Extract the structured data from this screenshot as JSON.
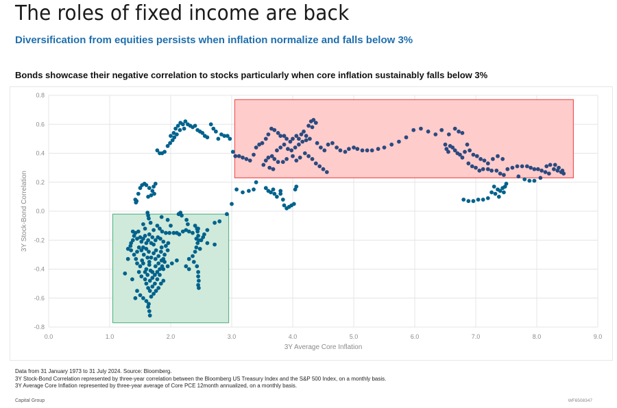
{
  "header": {
    "title": "The roles of fixed income are back",
    "subtitle": "Diversification from equities persists when inflation normalize and falls below 3%",
    "chart_heading": "Bonds showcase their negative correlation to stocks particularly when core inflation sustainably falls below 3%"
  },
  "footer": {
    "notes": [
      "Data from 31 January 1973 to 31 July 2024. Source: Bloomberg.",
      "3Y Stock-Bond Correlation represented by three-year correlation between the Bloomberg US Treasury Index and the S&P 500 Index, on a monthly basis.",
      "3Y Average Core Inflation represented by three-year average of Core PCE 12month annualized, on a monthly basis."
    ],
    "brand": "Capital Group",
    "code": "WF6508347"
  },
  "colors": {
    "subtitle": "#1f6fad",
    "point_low": "#00628c",
    "point_high": "#2b4a7e",
    "green_fill": "#cfeadb",
    "green_border": "#5db68a",
    "red_fill": "#ffcccc",
    "red_border": "#ef5555",
    "grid": "#e4e4e4"
  },
  "chart_data": {
    "type": "scatter",
    "title": "Bonds showcase their negative correlation to stocks particularly when core inflation sustainably falls below 3%",
    "xlabel": "3Y Average Core Inflation",
    "ylabel": "3Y Stock-Bond Correlation",
    "xlim": [
      0,
      9
    ],
    "ylim": [
      -0.8,
      0.8
    ],
    "xticks": [
      "0.0",
      "1.0",
      "2.0",
      "3.0",
      "4.0",
      "5.0",
      "6.0",
      "7.0",
      "8.0",
      "9.0"
    ],
    "yticks": [
      "0.8",
      "0.6",
      "0.4",
      "0.2",
      "0.0",
      "-0.2",
      "-0.4",
      "-0.6",
      "-0.8"
    ],
    "grid": true,
    "legend": "none",
    "highlight_regions": [
      {
        "name": "low-inflation-negative-correlation",
        "x": [
          1.05,
          2.95
        ],
        "y": [
          -0.77,
          -0.02
        ],
        "color": "green"
      },
      {
        "name": "high-inflation-positive-correlation",
        "x": [
          3.05,
          8.6
        ],
        "y": [
          0.23,
          0.77
        ],
        "color": "red"
      }
    ],
    "points": [
      [
        1.62,
        -0.01
      ],
      [
        1.63,
        -0.03
      ],
      [
        1.64,
        -0.05
      ],
      [
        1.85,
        -0.04
      ],
      [
        2.13,
        -0.02
      ],
      [
        2.16,
        -0.01
      ],
      [
        2.18,
        -0.03
      ],
      [
        2.26,
        -0.06
      ],
      [
        2.28,
        -0.09
      ],
      [
        2.92,
        -0.02
      ],
      [
        2.8,
        -0.07
      ],
      [
        2.72,
        -0.08
      ],
      [
        2.6,
        -0.13
      ],
      [
        1.58,
        -0.17
      ],
      [
        1.65,
        -0.16
      ],
      [
        1.72,
        -0.13
      ],
      [
        1.78,
        -0.1
      ],
      [
        1.82,
        -0.12
      ],
      [
        1.86,
        -0.14
      ],
      [
        1.92,
        -0.15
      ],
      [
        1.98,
        -0.15
      ],
      [
        2.05,
        -0.15
      ],
      [
        2.1,
        -0.15
      ],
      [
        2.14,
        -0.16
      ],
      [
        2.2,
        -0.14
      ],
      [
        2.25,
        -0.13
      ],
      [
        2.3,
        -0.14
      ],
      [
        2.36,
        -0.15
      ],
      [
        2.42,
        -0.19
      ],
      [
        2.46,
        -0.2
      ],
      [
        2.5,
        -0.2
      ],
      [
        2.53,
        -0.18
      ],
      [
        2.55,
        -0.16
      ],
      [
        2.45,
        -0.12
      ],
      [
        2.4,
        -0.1
      ],
      [
        1.4,
        -0.17
      ],
      [
        1.38,
        -0.2
      ],
      [
        1.35,
        -0.22
      ],
      [
        1.42,
        -0.15
      ],
      [
        1.47,
        -0.14
      ],
      [
        1.5,
        -0.18
      ],
      [
        1.52,
        -0.21
      ],
      [
        1.55,
        -0.19
      ],
      [
        1.6,
        -0.22
      ],
      [
        1.63,
        -0.2
      ],
      [
        1.68,
        -0.22
      ],
      [
        1.7,
        -0.18
      ],
      [
        1.75,
        -0.2
      ],
      [
        1.79,
        -0.18
      ],
      [
        1.83,
        -0.19
      ],
      [
        1.88,
        -0.21
      ],
      [
        1.92,
        -0.24
      ],
      [
        1.96,
        -0.22
      ],
      [
        1.35,
        -0.27
      ],
      [
        1.4,
        -0.3
      ],
      [
        1.43,
        -0.33
      ],
      [
        1.45,
        -0.28
      ],
      [
        1.48,
        -0.25
      ],
      [
        1.52,
        -0.27
      ],
      [
        1.56,
        -0.3
      ],
      [
        1.6,
        -0.26
      ],
      [
        1.64,
        -0.28
      ],
      [
        1.68,
        -0.32
      ],
      [
        1.72,
        -0.29
      ],
      [
        1.76,
        -0.27
      ],
      [
        1.8,
        -0.31
      ],
      [
        1.84,
        -0.28
      ],
      [
        1.88,
        -0.33
      ],
      [
        1.3,
        -0.33
      ],
      [
        1.45,
        -0.36
      ],
      [
        1.5,
        -0.38
      ],
      [
        1.55,
        -0.36
      ],
      [
        1.6,
        -0.4
      ],
      [
        1.65,
        -0.37
      ],
      [
        1.7,
        -0.42
      ],
      [
        1.75,
        -0.38
      ],
      [
        1.8,
        -0.36
      ],
      [
        1.85,
        -0.34
      ],
      [
        1.9,
        -0.3
      ],
      [
        1.95,
        -0.27
      ],
      [
        1.48,
        -0.42
      ],
      [
        1.52,
        -0.45
      ],
      [
        1.58,
        -0.47
      ],
      [
        1.62,
        -0.44
      ],
      [
        1.66,
        -0.48
      ],
      [
        1.7,
        -0.46
      ],
      [
        1.74,
        -0.44
      ],
      [
        1.78,
        -0.42
      ],
      [
        1.82,
        -0.4
      ],
      [
        1.86,
        -0.38
      ],
      [
        1.9,
        -0.35
      ],
      [
        1.25,
        -0.43
      ],
      [
        1.37,
        -0.47
      ],
      [
        1.6,
        -0.5
      ],
      [
        1.63,
        -0.53
      ],
      [
        1.66,
        -0.55
      ],
      [
        1.7,
        -0.52
      ],
      [
        1.74,
        -0.5
      ],
      [
        1.78,
        -0.47
      ],
      [
        1.82,
        -0.44
      ],
      [
        1.88,
        -0.4
      ],
      [
        1.95,
        -0.38
      ],
      [
        2.02,
        -0.36
      ],
      [
        2.1,
        -0.34
      ],
      [
        2.3,
        -0.33
      ],
      [
        2.36,
        -0.31
      ],
      [
        2.4,
        -0.28
      ],
      [
        2.42,
        -0.25
      ],
      [
        2.44,
        -0.22
      ],
      [
        2.48,
        -0.26
      ],
      [
        2.38,
        -0.35
      ],
      [
        2.43,
        -0.38
      ],
      [
        2.45,
        -0.42
      ],
      [
        2.45,
        -0.45
      ],
      [
        2.46,
        -0.48
      ],
      [
        2.45,
        -0.51
      ],
      [
        2.46,
        -0.53
      ],
      [
        2.3,
        -0.4
      ],
      [
        2.25,
        -0.38
      ],
      [
        2.6,
        -0.22
      ],
      [
        2.72,
        -0.23
      ],
      [
        2.45,
        -0.17
      ],
      [
        2.44,
        -0.14
      ],
      [
        2.43,
        -0.12
      ],
      [
        1.5,
        -0.58
      ],
      [
        1.55,
        -0.6
      ],
      [
        1.6,
        -0.62
      ],
      [
        1.64,
        -0.64
      ],
      [
        1.45,
        -0.55
      ],
      [
        1.42,
        -0.6
      ],
      [
        1.63,
        -0.66
      ],
      [
        1.65,
        -0.69
      ],
      [
        1.66,
        -0.72
      ],
      [
        1.68,
        -0.59
      ],
      [
        1.72,
        -0.57
      ],
      [
        1.76,
        -0.55
      ],
      [
        1.8,
        -0.53
      ],
      [
        1.84,
        -0.5
      ],
      [
        1.88,
        -0.48
      ],
      [
        1.3,
        -0.26
      ],
      [
        1.34,
        -0.24
      ],
      [
        1.38,
        -0.14
      ],
      [
        1.55,
        -0.09
      ],
      [
        1.58,
        -0.12
      ],
      [
        1.67,
        -0.08
      ],
      [
        1.95,
        -0.06
      ],
      [
        2.0,
        -0.1
      ],
      [
        1.45,
        -0.19
      ],
      [
        1.55,
        -0.25
      ],
      [
        1.65,
        -0.35
      ],
      [
        1.75,
        -0.33
      ],
      [
        1.85,
        -0.25
      ],
      [
        1.72,
        -0.23
      ],
      [
        1.62,
        -0.32
      ],
      [
        1.53,
        -0.34
      ],
      [
        1.58,
        -0.42
      ],
      [
        1.67,
        -0.41
      ],
      [
        1.42,
        0.08
      ],
      [
        1.43,
        0.06
      ],
      [
        1.44,
        0.07
      ],
      [
        1.47,
        0.12
      ],
      [
        1.5,
        0.16
      ],
      [
        1.53,
        0.18
      ],
      [
        1.57,
        0.19
      ],
      [
        1.6,
        0.18
      ],
      [
        1.65,
        0.16
      ],
      [
        1.7,
        0.14
      ],
      [
        1.73,
        0.12
      ],
      [
        1.68,
        0.11
      ],
      [
        1.63,
        0.1
      ],
      [
        1.72,
        0.17
      ],
      [
        1.75,
        0.19
      ],
      [
        1.78,
        0.42
      ],
      [
        1.82,
        0.4
      ],
      [
        1.86,
        0.4
      ],
      [
        1.9,
        0.41
      ],
      [
        1.95,
        0.45
      ],
      [
        1.99,
        0.47
      ],
      [
        2.03,
        0.49
      ],
      [
        2.06,
        0.51
      ],
      [
        2.05,
        0.54
      ],
      [
        2.08,
        0.57
      ],
      [
        2.12,
        0.59
      ],
      [
        2.16,
        0.61
      ],
      [
        2.2,
        0.6
      ],
      [
        2.24,
        0.62
      ],
      [
        2.28,
        0.6
      ],
      [
        2.32,
        0.59
      ],
      [
        2.36,
        0.58
      ],
      [
        2.4,
        0.59
      ],
      [
        2.44,
        0.56
      ],
      [
        2.48,
        0.55
      ],
      [
        2.52,
        0.54
      ],
      [
        2.56,
        0.52
      ],
      [
        2.6,
        0.51
      ],
      [
        2.66,
        0.6
      ],
      [
        2.7,
        0.57
      ],
      [
        2.74,
        0.55
      ],
      [
        2.78,
        0.5
      ],
      [
        2.83,
        0.53
      ],
      [
        2.88,
        0.52
      ],
      [
        2.93,
        0.52
      ],
      [
        2.97,
        0.5
      ],
      [
        2.15,
        0.56
      ],
      [
        2.22,
        0.57
      ],
      [
        2.1,
        0.53
      ],
      [
        2.0,
        0.52
      ],
      [
        3.02,
        0.41
      ],
      [
        3.06,
        0.38
      ],
      [
        3.12,
        0.38
      ],
      [
        3.18,
        0.37
      ],
      [
        3.24,
        0.36
      ],
      [
        3.3,
        0.35
      ],
      [
        3.36,
        0.39
      ],
      [
        3.4,
        0.44
      ],
      [
        3.45,
        0.46
      ],
      [
        3.5,
        0.47
      ],
      [
        3.56,
        0.5
      ],
      [
        3.6,
        0.53
      ],
      [
        3.65,
        0.57
      ],
      [
        3.7,
        0.56
      ],
      [
        3.76,
        0.54
      ],
      [
        3.8,
        0.52
      ],
      [
        3.86,
        0.52
      ],
      [
        3.9,
        0.5
      ],
      [
        3.96,
        0.48
      ],
      [
        4.0,
        0.5
      ],
      [
        4.06,
        0.52
      ],
      [
        4.1,
        0.5
      ],
      [
        4.14,
        0.53
      ],
      [
        4.18,
        0.55
      ],
      [
        4.22,
        0.52
      ],
      [
        4.26,
        0.59
      ],
      [
        4.3,
        0.62
      ],
      [
        4.34,
        0.63
      ],
      [
        4.38,
        0.61
      ],
      [
        4.32,
        0.58
      ],
      [
        3.74,
        0.42
      ],
      [
        3.8,
        0.44
      ],
      [
        3.86,
        0.46
      ],
      [
        3.92,
        0.43
      ],
      [
        3.98,
        0.42
      ],
      [
        4.04,
        0.44
      ],
      [
        4.1,
        0.46
      ],
      [
        4.16,
        0.48
      ],
      [
        4.22,
        0.49
      ],
      [
        4.28,
        0.5
      ],
      [
        3.52,
        0.32
      ],
      [
        3.56,
        0.35
      ],
      [
        3.6,
        0.37
      ],
      [
        3.66,
        0.38
      ],
      [
        3.7,
        0.36
      ],
      [
        3.76,
        0.34
      ],
      [
        3.62,
        0.3
      ],
      [
        3.68,
        0.29
      ],
      [
        3.84,
        0.34
      ],
      [
        3.9,
        0.36
      ],
      [
        4.0,
        0.38
      ],
      [
        4.06,
        0.35
      ],
      [
        4.12,
        0.37
      ],
      [
        4.2,
        0.4
      ],
      [
        4.26,
        0.38
      ],
      [
        4.32,
        0.36
      ],
      [
        4.38,
        0.33
      ],
      [
        4.44,
        0.31
      ],
      [
        4.5,
        0.29
      ],
      [
        4.56,
        0.27
      ],
      [
        4.4,
        0.47
      ],
      [
        4.46,
        0.44
      ],
      [
        4.52,
        0.42
      ],
      [
        4.58,
        0.46
      ],
      [
        4.65,
        0.47
      ],
      [
        4.72,
        0.44
      ],
      [
        4.78,
        0.42
      ],
      [
        4.86,
        0.41
      ],
      [
        4.92,
        0.43
      ],
      [
        5.0,
        0.44
      ],
      [
        5.06,
        0.43
      ],
      [
        5.14,
        0.42
      ],
      [
        5.22,
        0.42
      ],
      [
        5.3,
        0.42
      ],
      [
        5.4,
        0.43
      ],
      [
        5.5,
        0.44
      ],
      [
        5.62,
        0.46
      ],
      [
        5.74,
        0.48
      ],
      [
        5.86,
        0.51
      ],
      [
        5.98,
        0.56
      ],
      [
        6.1,
        0.57
      ],
      [
        6.22,
        0.55
      ],
      [
        6.34,
        0.53
      ],
      [
        6.44,
        0.56
      ],
      [
        6.56,
        0.53
      ],
      [
        6.66,
        0.57
      ],
      [
        6.72,
        0.55
      ],
      [
        6.78,
        0.54
      ],
      [
        6.5,
        0.46
      ],
      [
        6.52,
        0.43
      ],
      [
        6.55,
        0.41
      ],
      [
        6.58,
        0.45
      ],
      [
        6.62,
        0.44
      ],
      [
        6.66,
        0.42
      ],
      [
        6.7,
        0.4
      ],
      [
        6.74,
        0.39
      ],
      [
        6.78,
        0.37
      ],
      [
        6.82,
        0.41
      ],
      [
        6.86,
        0.46
      ],
      [
        6.9,
        0.42
      ],
      [
        6.96,
        0.39
      ],
      [
        7.02,
        0.38
      ],
      [
        7.08,
        0.36
      ],
      [
        7.14,
        0.35
      ],
      [
        7.2,
        0.33
      ],
      [
        7.28,
        0.36
      ],
      [
        7.36,
        0.38
      ],
      [
        7.44,
        0.36
      ],
      [
        6.88,
        0.33
      ],
      [
        6.94,
        0.31
      ],
      [
        7.0,
        0.3
      ],
      [
        7.06,
        0.28
      ],
      [
        7.12,
        0.29
      ],
      [
        7.2,
        0.29
      ],
      [
        7.26,
        0.28
      ],
      [
        7.34,
        0.28
      ],
      [
        7.4,
        0.26
      ],
      [
        7.46,
        0.25
      ],
      [
        7.52,
        0.29
      ],
      [
        7.6,
        0.3
      ],
      [
        7.68,
        0.31
      ],
      [
        7.76,
        0.31
      ],
      [
        7.84,
        0.31
      ],
      [
        7.9,
        0.3
      ],
      [
        7.96,
        0.29
      ],
      [
        8.02,
        0.29
      ],
      [
        8.08,
        0.28
      ],
      [
        8.14,
        0.27
      ],
      [
        8.2,
        0.26
      ],
      [
        8.28,
        0.29
      ],
      [
        8.34,
        0.28
      ],
      [
        8.4,
        0.27
      ],
      [
        8.44,
        0.26
      ],
      [
        8.42,
        0.28
      ],
      [
        8.36,
        0.3
      ],
      [
        8.3,
        0.32
      ],
      [
        8.22,
        0.32
      ],
      [
        8.16,
        0.31
      ],
      [
        7.8,
        0.22
      ],
      [
        7.88,
        0.21
      ],
      [
        7.96,
        0.21
      ],
      [
        8.06,
        0.23
      ],
      [
        7.7,
        0.24
      ],
      [
        3.0,
        0.05
      ],
      [
        3.08,
        0.15
      ],
      [
        3.18,
        0.13
      ],
      [
        3.28,
        0.14
      ],
      [
        3.36,
        0.15
      ],
      [
        3.4,
        0.2
      ],
      [
        3.56,
        0.16
      ],
      [
        3.6,
        0.14
      ],
      [
        3.64,
        0.13
      ],
      [
        3.68,
        0.15
      ],
      [
        3.7,
        0.12
      ],
      [
        3.74,
        0.1
      ],
      [
        3.8,
        0.12
      ],
      [
        3.84,
        0.08
      ],
      [
        3.86,
        0.04
      ],
      [
        3.9,
        0.02
      ],
      [
        3.94,
        0.03
      ],
      [
        3.98,
        0.04
      ],
      [
        4.02,
        0.05
      ],
      [
        4.04,
        0.15
      ],
      [
        4.06,
        0.17
      ],
      [
        3.8,
        0.14
      ],
      [
        6.8,
        0.08
      ],
      [
        6.88,
        0.07
      ],
      [
        6.96,
        0.07
      ],
      [
        7.04,
        0.08
      ],
      [
        7.12,
        0.08
      ],
      [
        7.2,
        0.09
      ],
      [
        7.26,
        0.13
      ],
      [
        7.32,
        0.12
      ],
      [
        7.36,
        0.15
      ],
      [
        7.4,
        0.14
      ],
      [
        7.44,
        0.16
      ],
      [
        7.48,
        0.17
      ],
      [
        7.5,
        0.19
      ],
      [
        7.38,
        0.1
      ],
      [
        7.3,
        0.17
      ],
      [
        7.46,
        0.13
      ]
    ]
  }
}
